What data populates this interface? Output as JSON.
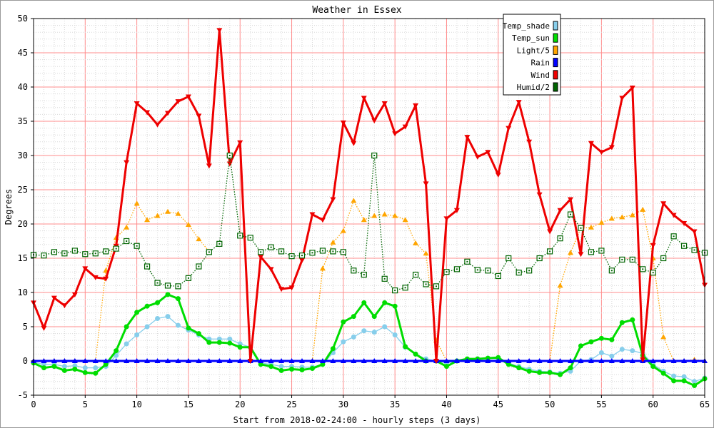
{
  "chart_data": {
    "type": "line",
    "title": "Weather in Essex",
    "xlabel": "Start from 2018-02-24:00 - hourly steps (3 days)",
    "ylabel": "Degrees",
    "xlim": [
      0,
      65
    ],
    "ylim": [
      -5,
      50
    ],
    "x_ticks": [
      0,
      5,
      10,
      15,
      20,
      25,
      30,
      35,
      40,
      45,
      50,
      55,
      60,
      65
    ],
    "y_ticks": [
      -5,
      0,
      5,
      10,
      15,
      20,
      25,
      30,
      35,
      40,
      45,
      50
    ],
    "grid": true,
    "legend_position": "top-right",
    "series": [
      {
        "name": "Temp_shade",
        "color": "#87ceeb",
        "marker": "circle",
        "line": "solid",
        "values": [
          -0.2,
          -0.5,
          -0.5,
          -0.8,
          -0.7,
          -1.0,
          -1.0,
          -0.8,
          0.8,
          2.5,
          3.8,
          5.0,
          6.2,
          6.5,
          5.2,
          4.5,
          3.8,
          3.2,
          3.2,
          3.2,
          2.5,
          2.0,
          -0.3,
          -0.5,
          -0.8,
          -0.8,
          -0.9,
          -0.9,
          -0.5,
          1.2,
          2.8,
          3.5,
          4.4,
          4.2,
          5.0,
          3.8,
          2.0,
          1.0,
          0.3,
          0.0,
          -0.3,
          0.0,
          0.2,
          0.3,
          0.4,
          0.3,
          -0.3,
          -0.8,
          -1.2,
          -1.5,
          -1.6,
          -1.8,
          -1.5,
          0.0,
          0.2,
          1.2,
          0.7,
          1.7,
          1.5,
          1.1,
          -0.5,
          -1.5,
          -2.2,
          -2.3,
          -3.0,
          -2.5
        ]
      },
      {
        "name": "Temp_sun",
        "color": "#00dd00",
        "marker": "circle",
        "line": "thick",
        "values": [
          -0.3,
          -1.0,
          -0.8,
          -1.4,
          -1.2,
          -1.7,
          -1.8,
          -0.5,
          1.5,
          5.0,
          7.1,
          8.0,
          8.5,
          9.7,
          9.1,
          4.8,
          4.0,
          2.7,
          2.7,
          2.6,
          2.0,
          2.0,
          -0.5,
          -0.8,
          -1.4,
          -1.2,
          -1.3,
          -1.1,
          -0.5,
          1.8,
          5.7,
          6.5,
          8.5,
          6.5,
          8.5,
          8.0,
          2.1,
          1.0,
          0.0,
          0.0,
          -0.8,
          0.0,
          0.3,
          0.3,
          0.4,
          0.5,
          -0.5,
          -1.0,
          -1.5,
          -1.7,
          -1.7,
          -2.0,
          -1.0,
          2.2,
          2.8,
          3.3,
          3.1,
          5.6,
          6.0,
          0.8,
          -0.8,
          -1.8,
          -2.9,
          -2.9,
          -3.6,
          -2.6
        ]
      },
      {
        "name": "Light/5",
        "color": "#ffa500",
        "marker": "triangle-up",
        "line": "dotted",
        "values": [
          0,
          0,
          0,
          0,
          0,
          0,
          0,
          13.2,
          18.0,
          19.5,
          23.0,
          20.6,
          21.2,
          21.8,
          21.5,
          19.9,
          17.8,
          16.0,
          null,
          null,
          null,
          null,
          null,
          null,
          null,
          null,
          null,
          0,
          13.5,
          17.3,
          19.0,
          23.4,
          20.6,
          21.2,
          21.4,
          21.2,
          20.6,
          17.2,
          15.7,
          3.0,
          0,
          null,
          null,
          null,
          null,
          null,
          null,
          null,
          null,
          null,
          0,
          11.0,
          15.8,
          19.4,
          19.5,
          20.2,
          20.8,
          21.0,
          21.3,
          22.1,
          15.0,
          3.5,
          0,
          0,
          0.2,
          0
        ]
      },
      {
        "name": "Rain",
        "color": "#0000ff",
        "marker": "triangle-up",
        "line": "thick",
        "values": [
          0,
          0,
          0,
          0,
          0,
          0,
          0,
          0,
          0,
          0,
          0,
          0,
          0,
          0,
          0,
          0,
          0,
          0,
          0,
          0,
          0,
          0,
          0,
          0,
          0,
          0,
          0,
          0,
          0,
          0,
          0,
          0,
          0,
          0,
          0,
          0,
          0,
          0,
          0,
          0,
          0,
          0,
          0,
          0,
          0,
          0,
          0,
          0,
          0,
          0,
          0,
          0,
          0,
          0,
          0,
          0,
          0,
          0,
          0,
          0,
          0,
          0,
          0,
          0,
          0,
          0
        ]
      },
      {
        "name": "Wind",
        "color": "#ee0000",
        "marker": "triangle-down",
        "line": "thick",
        "values": [
          8.5,
          4.8,
          9.2,
          8.1,
          9.7,
          13.5,
          12.2,
          12.0,
          16.8,
          29.0,
          37.6,
          36.3,
          34.5,
          36.2,
          37.9,
          38.6,
          35.8,
          28.5,
          48.3,
          28.8,
          31.9,
          0.0,
          15.2,
          13.4,
          10.5,
          10.7,
          14.7,
          21.4,
          20.6,
          23.6,
          34.8,
          31.8,
          38.4,
          35.1,
          37.6,
          33.2,
          34.2,
          37.3,
          25.9,
          0.0,
          20.8,
          22.0,
          32.7,
          29.8,
          30.5,
          27.2,
          34.0,
          37.8,
          32.0,
          24.3,
          18.9,
          22.0,
          23.6,
          15.6,
          31.8,
          30.5,
          31.2,
          38.4,
          39.9,
          0.2,
          16.9,
          23.0,
          21.3,
          20.1,
          18.9,
          11.1
        ]
      },
      {
        "name": "Humid/2",
        "color": "#006400",
        "marker": "square",
        "line": "dotted",
        "values": [
          15.5,
          15.4,
          15.9,
          15.7,
          16.1,
          15.6,
          15.7,
          16.0,
          16.4,
          17.5,
          16.8,
          13.8,
          11.4,
          11.0,
          10.9,
          12.1,
          13.8,
          15.9,
          17.1,
          30.0,
          18.3,
          18.0,
          15.9,
          16.6,
          16.0,
          15.3,
          15.4,
          15.8,
          16.1,
          16.0,
          15.9,
          13.2,
          12.6,
          30.0,
          12.0,
          10.3,
          10.7,
          12.6,
          11.2,
          10.9,
          13.0,
          13.4,
          14.5,
          13.3,
          13.2,
          12.4,
          15.0,
          12.9,
          13.2,
          15.0,
          16.0,
          17.9,
          21.4,
          19.4,
          15.9,
          16.1,
          13.2,
          14.8,
          14.8,
          13.4,
          12.9,
          15.0,
          18.2,
          16.8,
          16.2,
          15.8
        ]
      }
    ]
  }
}
